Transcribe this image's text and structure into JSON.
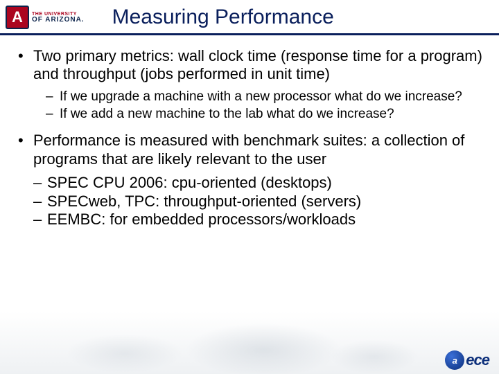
{
  "logo": {
    "letter": "A",
    "line1": "THE UNIVERSITY",
    "line2": "OF ARIZONA.",
    "letter_bg": "#ab0520",
    "border": "#0c234b"
  },
  "title": "Measuring Performance",
  "title_color": "#0a1f5c",
  "bullets": [
    {
      "text": "Two primary metrics: wall clock time (response time for a program) and throughput (jobs performed in unit time)",
      "sub": [
        "If we upgrade a machine with a new processor what do we increase?",
        "If we add a new machine to the lab what do we increase?"
      ]
    },
    {
      "text": "Performance is measured with benchmark suites: a collection of programs that are likely relevant to the user",
      "sub2": [
        "SPEC CPU 2006: cpu-oriented (desktops)",
        "SPECweb, TPC: throughput-oriented (servers)",
        "EEMBC: for embedded processors/workloads"
      ]
    }
  ],
  "footer_logo": {
    "ring": "a",
    "text": "ece"
  },
  "marks": {
    "l1": "•",
    "l2": "–"
  },
  "fonts": {
    "title_pt": 30,
    "body_pt": 22,
    "sub_pt": 19
  },
  "colors": {
    "bg": "#ffffff",
    "text": "#000000",
    "underline": "#0a1f5c"
  }
}
